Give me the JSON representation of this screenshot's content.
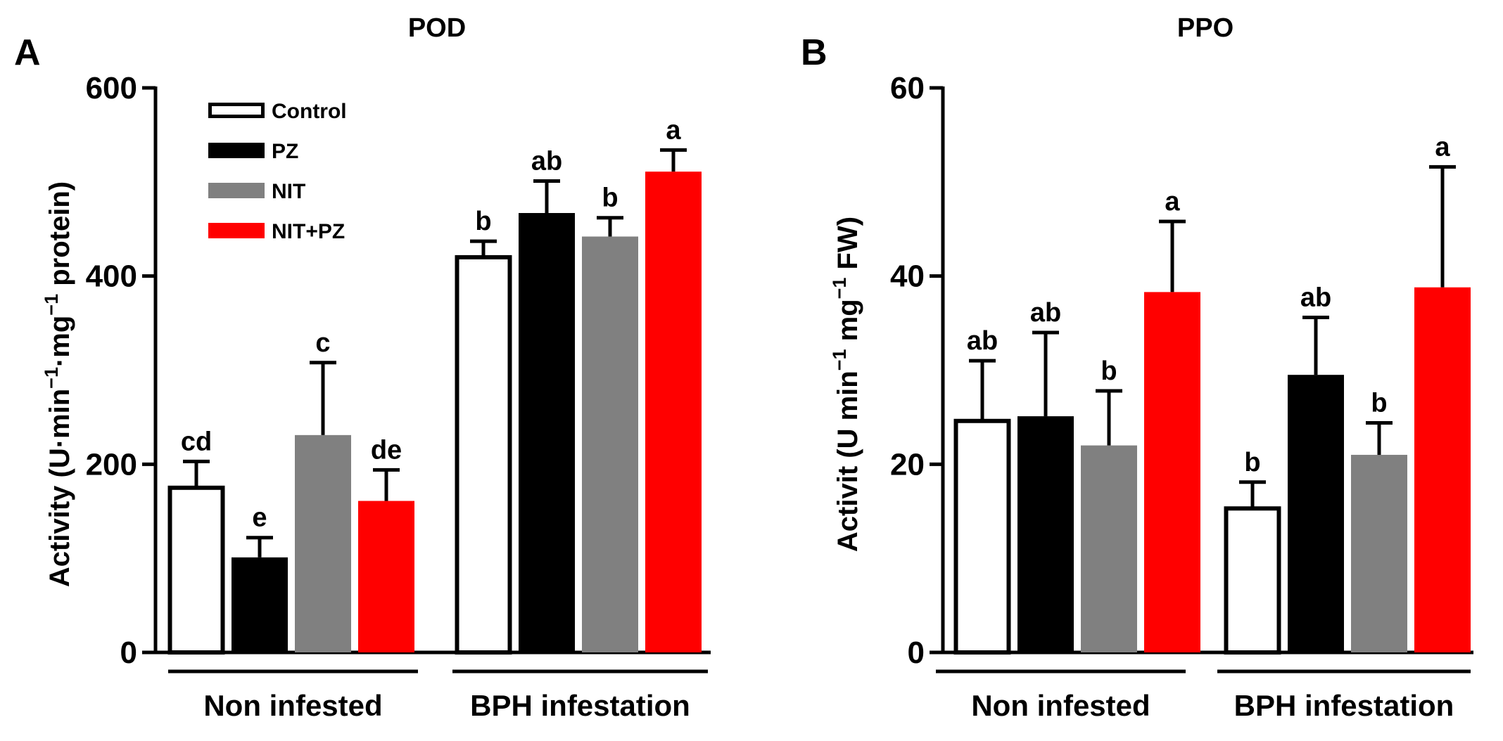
{
  "chart_data": [
    {
      "panel": "A",
      "type": "bar",
      "title": "POD",
      "ylabel": {
        "pre1": "Activity (U·min",
        "sup1": "−1",
        "mid": "·mg",
        "sup2": "−1",
        "post": " protein)"
      },
      "ylim": [
        0,
        600
      ],
      "yticks": [
        "0",
        "200",
        "400",
        "600"
      ],
      "groups": [
        "Non infested",
        "BPH infestation"
      ],
      "series": [
        {
          "name": "Control",
          "color": "#ffffff",
          "values": [
            175,
            420
          ],
          "errors": [
            28,
            17
          ],
          "letters": [
            "cd",
            "b"
          ]
        },
        {
          "name": "PZ",
          "color": "#000000",
          "values": [
            101,
            467
          ],
          "errors": [
            21,
            34
          ],
          "letters": [
            "e",
            "ab"
          ]
        },
        {
          "name": "NIT",
          "color": "#808080",
          "values": [
            231,
            442
          ],
          "errors": [
            77,
            20
          ],
          "letters": [
            "c",
            "b"
          ]
        },
        {
          "name": "NIT+PZ",
          "color": "#ff0000",
          "values": [
            161,
            511
          ],
          "errors": [
            33,
            23
          ],
          "letters": [
            "de",
            "a"
          ]
        }
      ],
      "legend": [
        "Control",
        "PZ",
        "NIT",
        "NIT+PZ"
      ]
    },
    {
      "panel": "B",
      "type": "bar",
      "title": "PPO",
      "ylabel": {
        "pre1": "Activit (U min",
        "sup1": "−1",
        "mid": " mg",
        "sup2": "−1",
        "post": " FW)"
      },
      "ylim": [
        0,
        60
      ],
      "yticks": [
        "0",
        "20",
        "40",
        "60"
      ],
      "groups": [
        "Non infested",
        "BPH infestation"
      ],
      "series": [
        {
          "name": "Control",
          "color": "#ffffff",
          "values": [
            24.6,
            15.3
          ],
          "errors": [
            6.4,
            2.8
          ],
          "letters": [
            "ab",
            "b"
          ]
        },
        {
          "name": "PZ",
          "color": "#000000",
          "values": [
            25.1,
            29.5
          ],
          "errors": [
            8.9,
            6.1
          ],
          "letters": [
            "ab",
            "ab"
          ]
        },
        {
          "name": "NIT",
          "color": "#808080",
          "values": [
            22.0,
            21.0
          ],
          "errors": [
            5.8,
            3.4
          ],
          "letters": [
            "b",
            "b"
          ]
        },
        {
          "name": "NIT+PZ",
          "color": "#ff0000",
          "values": [
            38.3,
            38.8
          ],
          "errors": [
            7.5,
            12.8
          ],
          "letters": [
            "a",
            "a"
          ]
        }
      ]
    }
  ]
}
